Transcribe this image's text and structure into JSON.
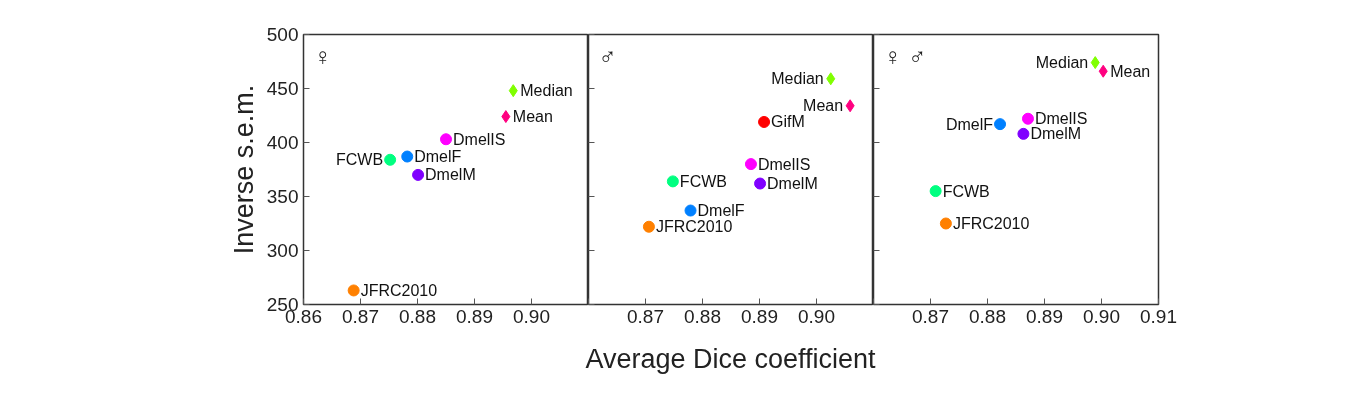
{
  "chart_data": [
    {
      "type": "scatter",
      "title": "♀",
      "ylabel": "Inverse s.e.m.",
      "xlim": [
        0.86,
        0.91
      ],
      "ylim": [
        250,
        500
      ],
      "xticks": [
        0.86,
        0.87,
        0.88,
        0.89,
        {
          "value": 0.9,
          "label": "0.90"
        },
        {
          "value": 0.91,
          "label": null
        }
      ],
      "yticks": [
        250,
        300,
        350,
        400,
        450,
        500
      ],
      "series": [
        {
          "name": "Median",
          "color": "#80ff00",
          "marker": "diamond",
          "x": [
            0.8968
          ],
          "values": [
            448
          ]
        },
        {
          "name": "Mean",
          "color": "#ff0080",
          "marker": "diamond",
          "x": [
            0.8955
          ],
          "values": [
            424
          ]
        },
        {
          "name": "DmelIS",
          "color": "#ff00ff",
          "marker": "circle",
          "x": [
            0.885
          ],
          "values": [
            403
          ]
        },
        {
          "name": "DmelF",
          "color": "#0080ff",
          "marker": "circle",
          "x": [
            0.8782
          ],
          "values": [
            387
          ]
        },
        {
          "name": "FCWB",
          "color": "#00ff80",
          "marker": "circle",
          "x": [
            0.8752
          ],
          "values": [
            384
          ]
        },
        {
          "name": "DmelM",
          "color": "#8000ff",
          "marker": "circle",
          "x": [
            0.8801
          ],
          "values": [
            370
          ]
        },
        {
          "name": "JFRC2010",
          "color": "#ff8000",
          "marker": "circle",
          "x": [
            0.8688
          ],
          "values": [
            263
          ]
        }
      ]
    },
    {
      "type": "scatter",
      "title": "♂",
      "xlabel": "Average Dice coefficient",
      "xlim": [
        0.86,
        0.91
      ],
      "ylim": [
        250,
        500
      ],
      "tick_labels": "x",
      "xticks": [
        {
          "value": 0.86,
          "label": null
        },
        0.87,
        0.88,
        0.89,
        {
          "value": 0.9,
          "label": "0.90"
        },
        {
          "value": 0.91,
          "label": null
        }
      ],
      "yticks": [
        250,
        300,
        350,
        400,
        450,
        500
      ],
      "series": [
        {
          "name": "Median",
          "color": "#80ff00",
          "marker": "diamond",
          "x": [
            0.9025
          ],
          "values": [
            459
          ]
        },
        {
          "name": "Mean",
          "color": "#ff0080",
          "marker": "diamond",
          "x": [
            0.9059
          ],
          "values": [
            434
          ]
        },
        {
          "name": "GifM",
          "color": "#ff0000",
          "marker": "circle",
          "x": [
            0.8908
          ],
          "values": [
            419
          ]
        },
        {
          "name": "DmelIS",
          "color": "#ff00ff",
          "marker": "circle",
          "x": [
            0.8885
          ],
          "values": [
            380
          ]
        },
        {
          "name": "FCWB",
          "color": "#00ff80",
          "marker": "circle",
          "x": [
            0.8748
          ],
          "values": [
            364
          ]
        },
        {
          "name": "DmelM",
          "color": "#8000ff",
          "marker": "circle",
          "x": [
            0.8901
          ],
          "values": [
            362
          ]
        },
        {
          "name": "DmelF",
          "color": "#0080ff",
          "marker": "circle",
          "x": [
            0.8779
          ],
          "values": [
            337
          ]
        },
        {
          "name": "JFRC2010",
          "color": "#ff8000",
          "marker": "circle",
          "x": [
            0.8706
          ],
          "values": [
            322
          ]
        }
      ]
    },
    {
      "type": "scatter",
      "title": "♀ ♂",
      "xlim": [
        0.86,
        0.91
      ],
      "ylim": [
        250,
        500
      ],
      "tick_labels": "x",
      "xticks": [
        {
          "value": 0.86,
          "label": null
        },
        0.87,
        0.88,
        0.89,
        {
          "value": 0.9,
          "label": "0.90"
        },
        0.91
      ],
      "yticks": [
        250,
        300,
        350,
        400,
        450,
        500
      ],
      "series": [
        {
          "name": "Median",
          "color": "#80ff00",
          "marker": "diamond",
          "x": [
            0.8989
          ],
          "values": [
            474
          ]
        },
        {
          "name": "Mean",
          "color": "#ff0080",
          "marker": "diamond",
          "x": [
            0.9003
          ],
          "values": [
            466
          ]
        },
        {
          "name": "DmelIS",
          "color": "#ff00ff",
          "marker": "circle",
          "x": [
            0.8871
          ],
          "values": [
            422
          ]
        },
        {
          "name": "DmelF",
          "color": "#0080ff",
          "marker": "circle",
          "x": [
            0.8822
          ],
          "values": [
            417
          ]
        },
        {
          "name": "DmelM",
          "color": "#8000ff",
          "marker": "circle",
          "x": [
            0.8863
          ],
          "values": [
            408
          ]
        },
        {
          "name": "FCWB",
          "color": "#00ff80",
          "marker": "circle",
          "x": [
            0.8709
          ],
          "values": [
            355
          ]
        },
        {
          "name": "JFRC2010",
          "color": "#ff8000",
          "marker": "circle",
          "x": [
            0.8727
          ],
          "values": [
            325
          ]
        }
      ]
    }
  ]
}
